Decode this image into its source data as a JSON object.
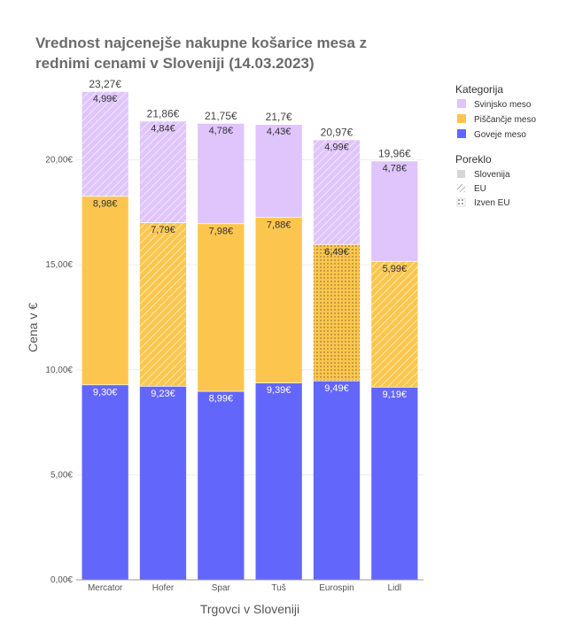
{
  "chart_data": {
    "type": "bar",
    "stacked": true,
    "title_lines": [
      "Vrednost najcenejše nakupne košarice mesa z",
      "rednimi cenami v Sloveniji (14.03.2023)"
    ],
    "xlabel": "Trgovci v Sloveniji",
    "ylabel": "Cena v €",
    "ylim": [
      0,
      23.9
    ],
    "yticks": [
      0,
      5,
      10,
      15,
      20
    ],
    "ytick_labels": [
      "0,00€",
      "5,00€",
      "10,00€",
      "15,00€",
      "20,00€"
    ],
    "grid": true,
    "categories": [
      "Mercator",
      "Hofer",
      "Spar",
      "Tuš",
      "Eurospin",
      "Lidl"
    ],
    "totals": [
      23.27,
      21.86,
      21.75,
      21.7,
      20.97,
      19.96
    ],
    "total_labels": [
      "23,27€",
      "21,86€",
      "21,75€",
      "21,7€",
      "20,97€",
      "19,96€"
    ],
    "series": [
      {
        "name": "Goveje meso",
        "color": "#6366fa",
        "values": [
          9.3,
          9.23,
          8.99,
          9.39,
          9.49,
          9.19
        ],
        "labels": [
          "9,30€",
          "9,23€",
          "8,99€",
          "9,39€",
          "9,49€",
          "9,19€"
        ],
        "origin": [
          "Slovenija",
          "Slovenija",
          "Slovenija",
          "Slovenija",
          "Slovenija",
          "Slovenija"
        ]
      },
      {
        "name": "Piščančje meso",
        "color": "#fcc64e",
        "values": [
          8.98,
          7.79,
          7.98,
          7.88,
          6.49,
          5.99
        ],
        "labels": [
          "8,98€",
          "7,79€",
          "7,98€",
          "7,88€",
          "6,49€",
          "5,99€"
        ],
        "origin": [
          "Slovenija",
          "EU",
          "Slovenija",
          "Slovenija",
          "Izven EU",
          "EU"
        ]
      },
      {
        "name": "Svinjsko meso",
        "color": "#dfc5fb",
        "values": [
          4.99,
          4.84,
          4.78,
          4.43,
          4.99,
          4.78
        ],
        "labels": [
          "4,99€",
          "4,84€",
          "4,78€",
          "4,43€",
          "4,99€",
          "4,78€"
        ],
        "origin": [
          "EU",
          "EU",
          "Slovenija",
          "Slovenija",
          "EU",
          "Slovenija"
        ]
      }
    ],
    "legend": {
      "placement": "right",
      "category_title": "Kategorija",
      "category_items": [
        "Svinjsko meso",
        "Piščančje meso",
        "Goveje meso"
      ],
      "origin_title": "Poreklo",
      "origin_items": [
        "Slovenija",
        "EU",
        "Izven EU"
      ]
    }
  }
}
